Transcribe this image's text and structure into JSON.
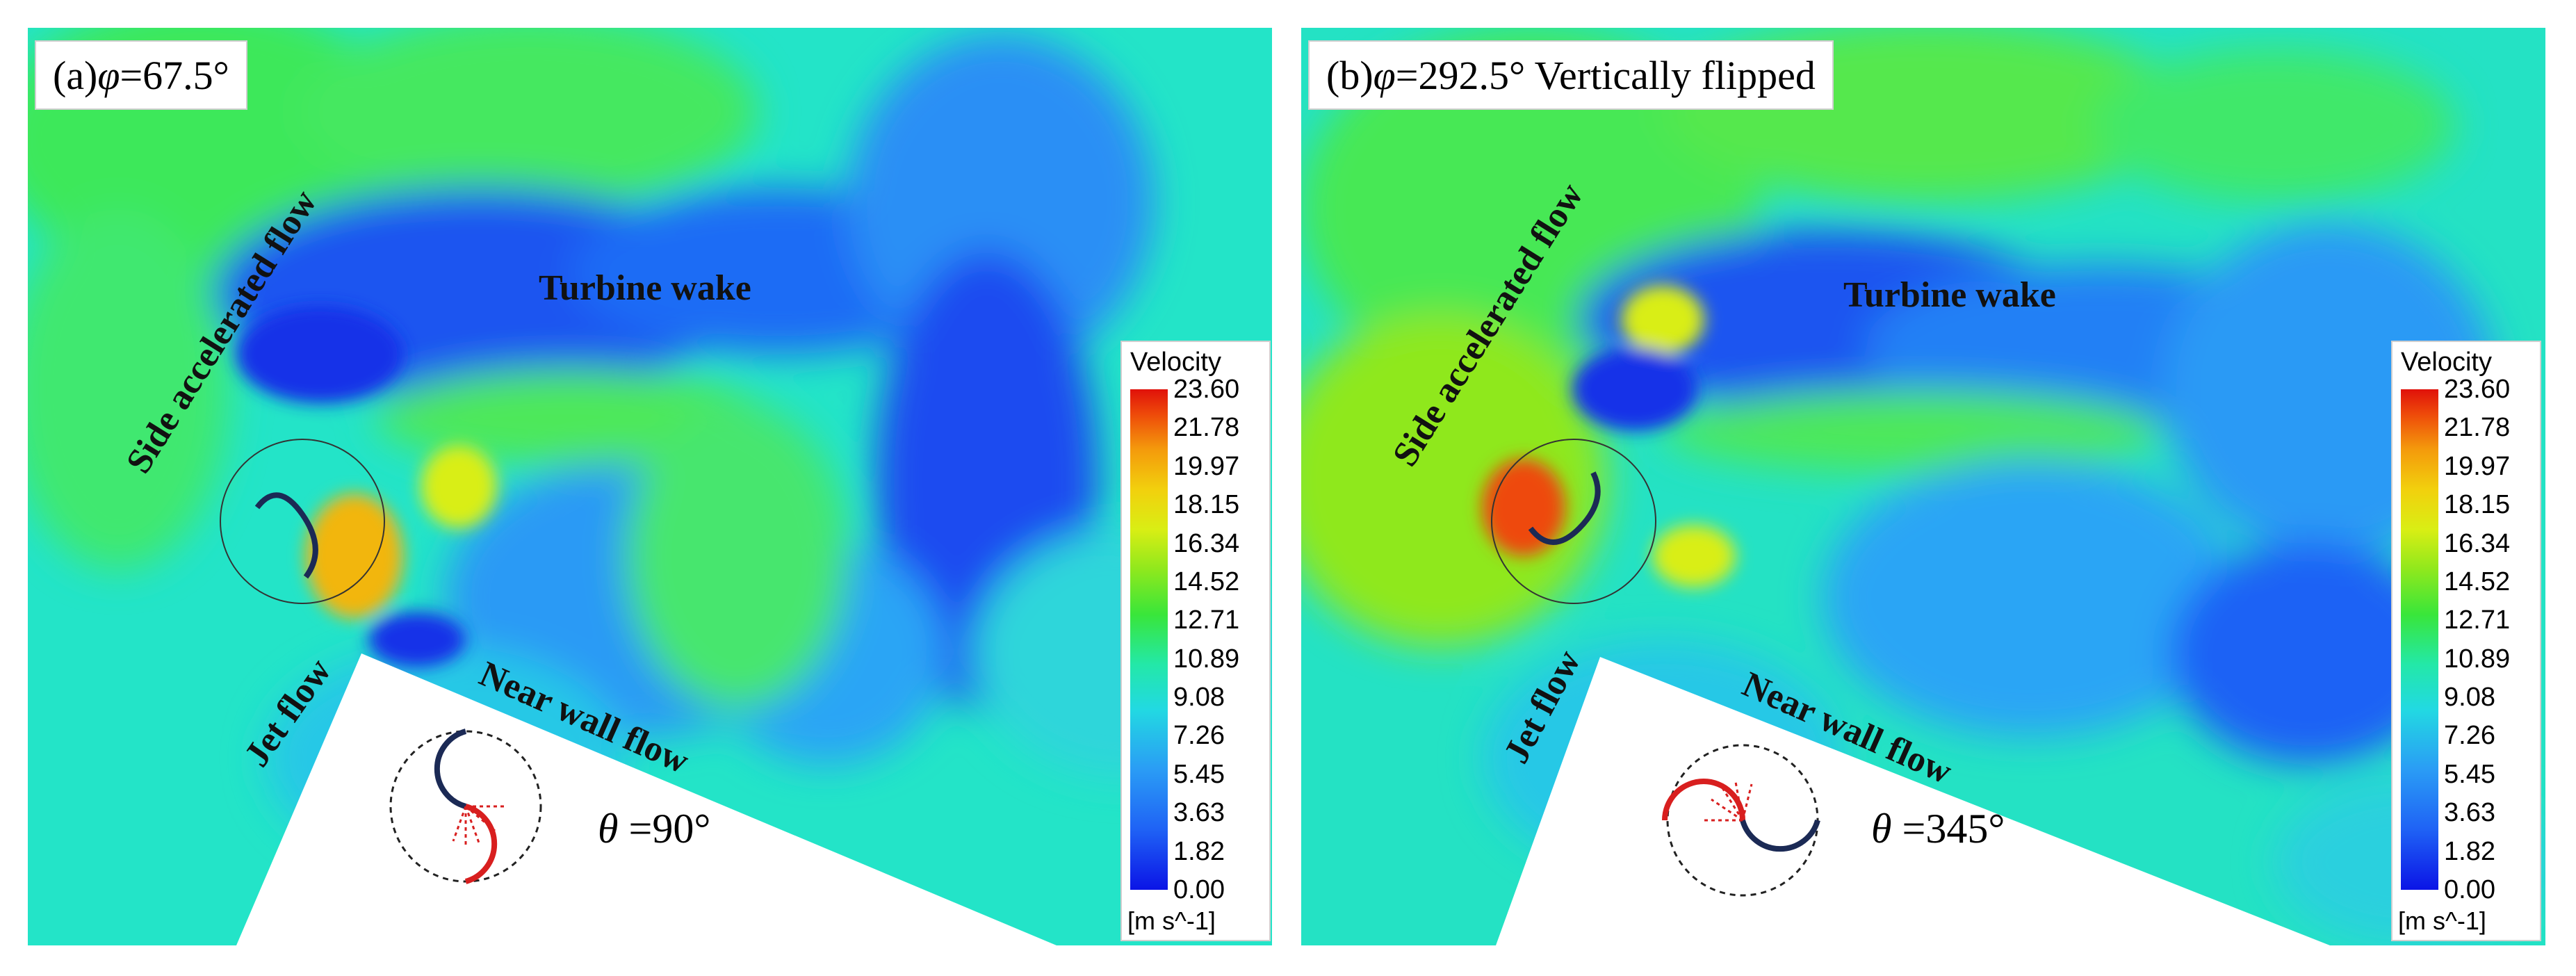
{
  "panels": [
    {
      "id": "a",
      "label_prefix": "(a) ",
      "phi_symbol": "φ",
      "label_value": " =67.5°",
      "annotations": {
        "side_flow": "Side accelerated flow",
        "turbine_wake": "Turbine wake",
        "jet_flow": "Jet flow",
        "near_wall": "Near wall flow"
      },
      "theta_symbol": "θ",
      "theta_value": " =90°"
    },
    {
      "id": "b",
      "label_prefix": "(b) ",
      "phi_symbol": "φ",
      "label_value": " =292.5° Vertically flipped",
      "annotations": {
        "side_flow": "Side accelerated flow",
        "turbine_wake": "Turbine wake",
        "jet_flow": "Jet flow",
        "near_wall": "Near wall flow"
      },
      "theta_symbol": "θ",
      "theta_value": " =345°"
    }
  ],
  "legend": {
    "title": "Velocity",
    "unit": "[m s^-1]",
    "ticks": [
      "23.60",
      "21.78",
      "19.97",
      "18.15",
      "16.34",
      "14.52",
      "12.71",
      "10.89",
      "9.08",
      "7.26",
      "5.45",
      "3.63",
      "1.82",
      "0.00"
    ]
  },
  "colors": {
    "background_field": "#22e8d0",
    "low_velocity": "#0b14e6",
    "high_velocity": "#e0110a",
    "blade_dark": "#1b2a55",
    "blade_red": "#d81f1f"
  }
}
